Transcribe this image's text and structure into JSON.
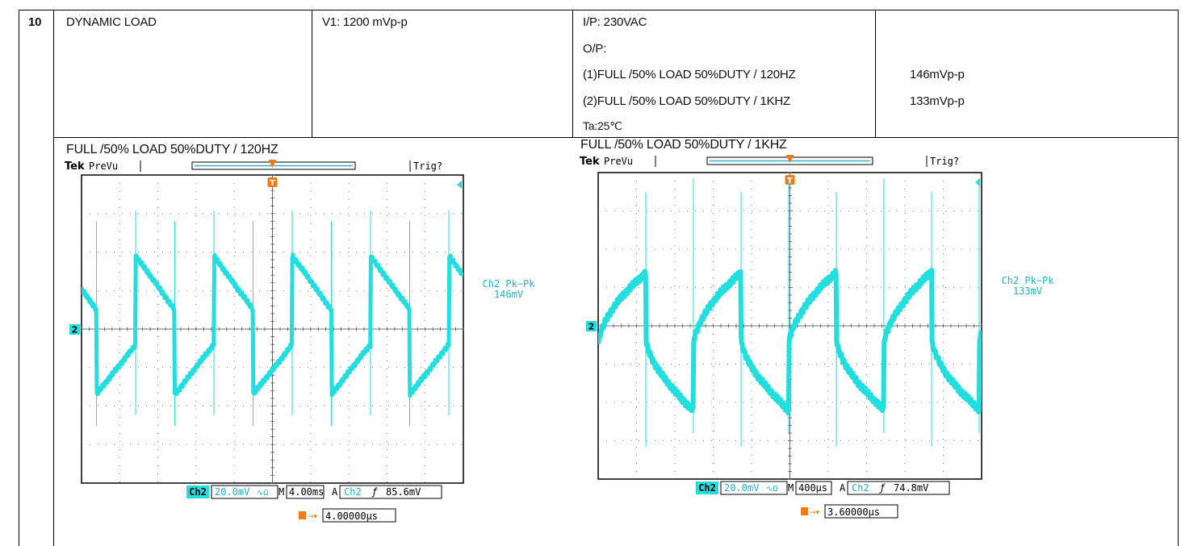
{
  "row_number": "10",
  "test_name": "DYNAMIC LOAD",
  "spec": "V1: 1200 mVp-p",
  "conditions": {
    "input": "I/P: 230VAC",
    "output_label": "O/P:",
    "case1": "(1)FULL /50% LOAD 50%DUTY / 120HZ",
    "case2": "(2)FULL /50% LOAD 50%DUTY / 1KHZ",
    "ambient": "Ta:25℃"
  },
  "results": {
    "case1": "146mVp-p",
    "case2": "133mVp-p"
  },
  "scopes": [
    {
      "caption": "FULL /50% LOAD 50%DUTY / 120HZ",
      "brand": "Tek",
      "mode": "PreVu",
      "trig_status": "Trig?",
      "channel_marker": "2",
      "meas_label": "Ch2 Pk−Pk",
      "meas_value": "146mV",
      "ch_label": "Ch2",
      "volts_div": "20.0mV",
      "coupling_glyph": "∿",
      "bw_glyph": "Ω",
      "time_prefix": "M",
      "time_div": "4.00ms",
      "trig_prefix": "A",
      "trig_ch": "Ch2",
      "trig_slope": "ƒ",
      "trig_level": "85.6mV",
      "trig_pos": "4.00000µs",
      "trace_color": "#22dede"
    },
    {
      "caption": "FULL /50% LOAD 50%DUTY / 1KHZ",
      "brand": "Tek",
      "mode": "PreVu",
      "trig_status": "Trig?",
      "channel_marker": "2",
      "meas_label": "Ch2 Pk−Pk",
      "meas_value": "133mV",
      "ch_label": "Ch2",
      "volts_div": "20.0mV",
      "coupling_glyph": "∿",
      "bw_glyph": "Ω",
      "time_prefix": "M",
      "time_div": "400µs",
      "trig_prefix": "A",
      "trig_ch": "Ch2",
      "trig_slope": "ƒ",
      "trig_level": "74.8mV",
      "trig_pos": "3.60000µs",
      "trace_color": "#22dede"
    }
  ]
}
